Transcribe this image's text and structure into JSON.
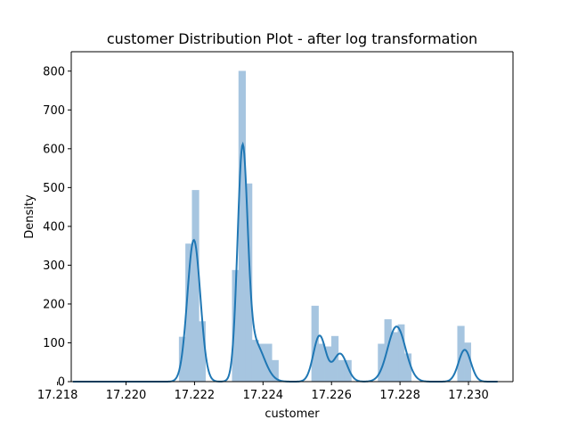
{
  "chart_data": {
    "type": "histogram",
    "title": "customer Distribution Plot - after log transformation",
    "xlabel": "customer",
    "ylabel": "Density",
    "xlim": [
      17.2184,
      17.2313
    ],
    "ylim": [
      0,
      850
    ],
    "x_ticks": [
      "17.218",
      "17.220",
      "17.222",
      "17.224",
      "17.226",
      "17.228",
      "17.230"
    ],
    "x_tick_values": [
      17.218,
      17.22,
      17.222,
      17.224,
      17.226,
      17.228,
      17.23
    ],
    "y_ticks": [
      "0",
      "100",
      "200",
      "300",
      "400",
      "500",
      "600",
      "700",
      "800"
    ],
    "y_tick_values": [
      0,
      100,
      200,
      300,
      400,
      500,
      600,
      700,
      800
    ],
    "bar_color": "#a6c5e0",
    "line_color": "#1f77b4",
    "bins": [
      {
        "x0": 17.22155,
        "x1": 17.22174,
        "density": 115
      },
      {
        "x0": 17.22174,
        "x1": 17.22193,
        "density": 355
      },
      {
        "x0": 17.22193,
        "x1": 17.22213,
        "density": 493
      },
      {
        "x0": 17.22213,
        "x1": 17.22232,
        "density": 155
      },
      {
        "x0": 17.2231,
        "x1": 17.22329,
        "density": 287
      },
      {
        "x0": 17.22329,
        "x1": 17.22349,
        "density": 800
      },
      {
        "x0": 17.22349,
        "x1": 17.22368,
        "density": 510
      },
      {
        "x0": 17.22368,
        "x1": 17.22387,
        "density": 107
      },
      {
        "x0": 17.22387,
        "x1": 17.22407,
        "density": 97
      },
      {
        "x0": 17.22407,
        "x1": 17.22426,
        "density": 97
      },
      {
        "x0": 17.22426,
        "x1": 17.22445,
        "density": 55
      },
      {
        "x0": 17.22542,
        "x1": 17.22562,
        "density": 195
      },
      {
        "x0": 17.22562,
        "x1": 17.22581,
        "density": 97
      },
      {
        "x0": 17.22581,
        "x1": 17.226,
        "density": 90
      },
      {
        "x0": 17.226,
        "x1": 17.2262,
        "density": 117
      },
      {
        "x0": 17.2262,
        "x1": 17.22639,
        "density": 55
      },
      {
        "x0": 17.22639,
        "x1": 17.22658,
        "density": 55
      },
      {
        "x0": 17.22736,
        "x1": 17.22755,
        "density": 97
      },
      {
        "x0": 17.22755,
        "x1": 17.22775,
        "density": 160
      },
      {
        "x0": 17.22775,
        "x1": 17.22794,
        "density": 127
      },
      {
        "x0": 17.22794,
        "x1": 17.22813,
        "density": 147
      },
      {
        "x0": 17.22813,
        "x1": 17.22833,
        "density": 72
      },
      {
        "x0": 17.22968,
        "x1": 17.22988,
        "density": 143
      },
      {
        "x0": 17.22988,
        "x1": 17.23007,
        "density": 100
      }
    ],
    "kde": {
      "components": [
        {
          "mu": 17.22198,
          "sigma": 0.00019,
          "amp": 365
        },
        {
          "mu": 17.2234,
          "sigma": 0.000145,
          "amp": 565
        },
        {
          "mu": 17.22375,
          "sigma": 0.00028,
          "amp": 100
        },
        {
          "mu": 17.22565,
          "sigma": 0.00018,
          "amp": 118
        },
        {
          "mu": 17.22625,
          "sigma": 0.0002,
          "amp": 72
        },
        {
          "mu": 17.2279,
          "sigma": 0.00026,
          "amp": 142
        },
        {
          "mu": 17.22989,
          "sigma": 0.00018,
          "amp": 82
        }
      ],
      "x_start": 17.21845,
      "x_end": 17.23085
    }
  }
}
